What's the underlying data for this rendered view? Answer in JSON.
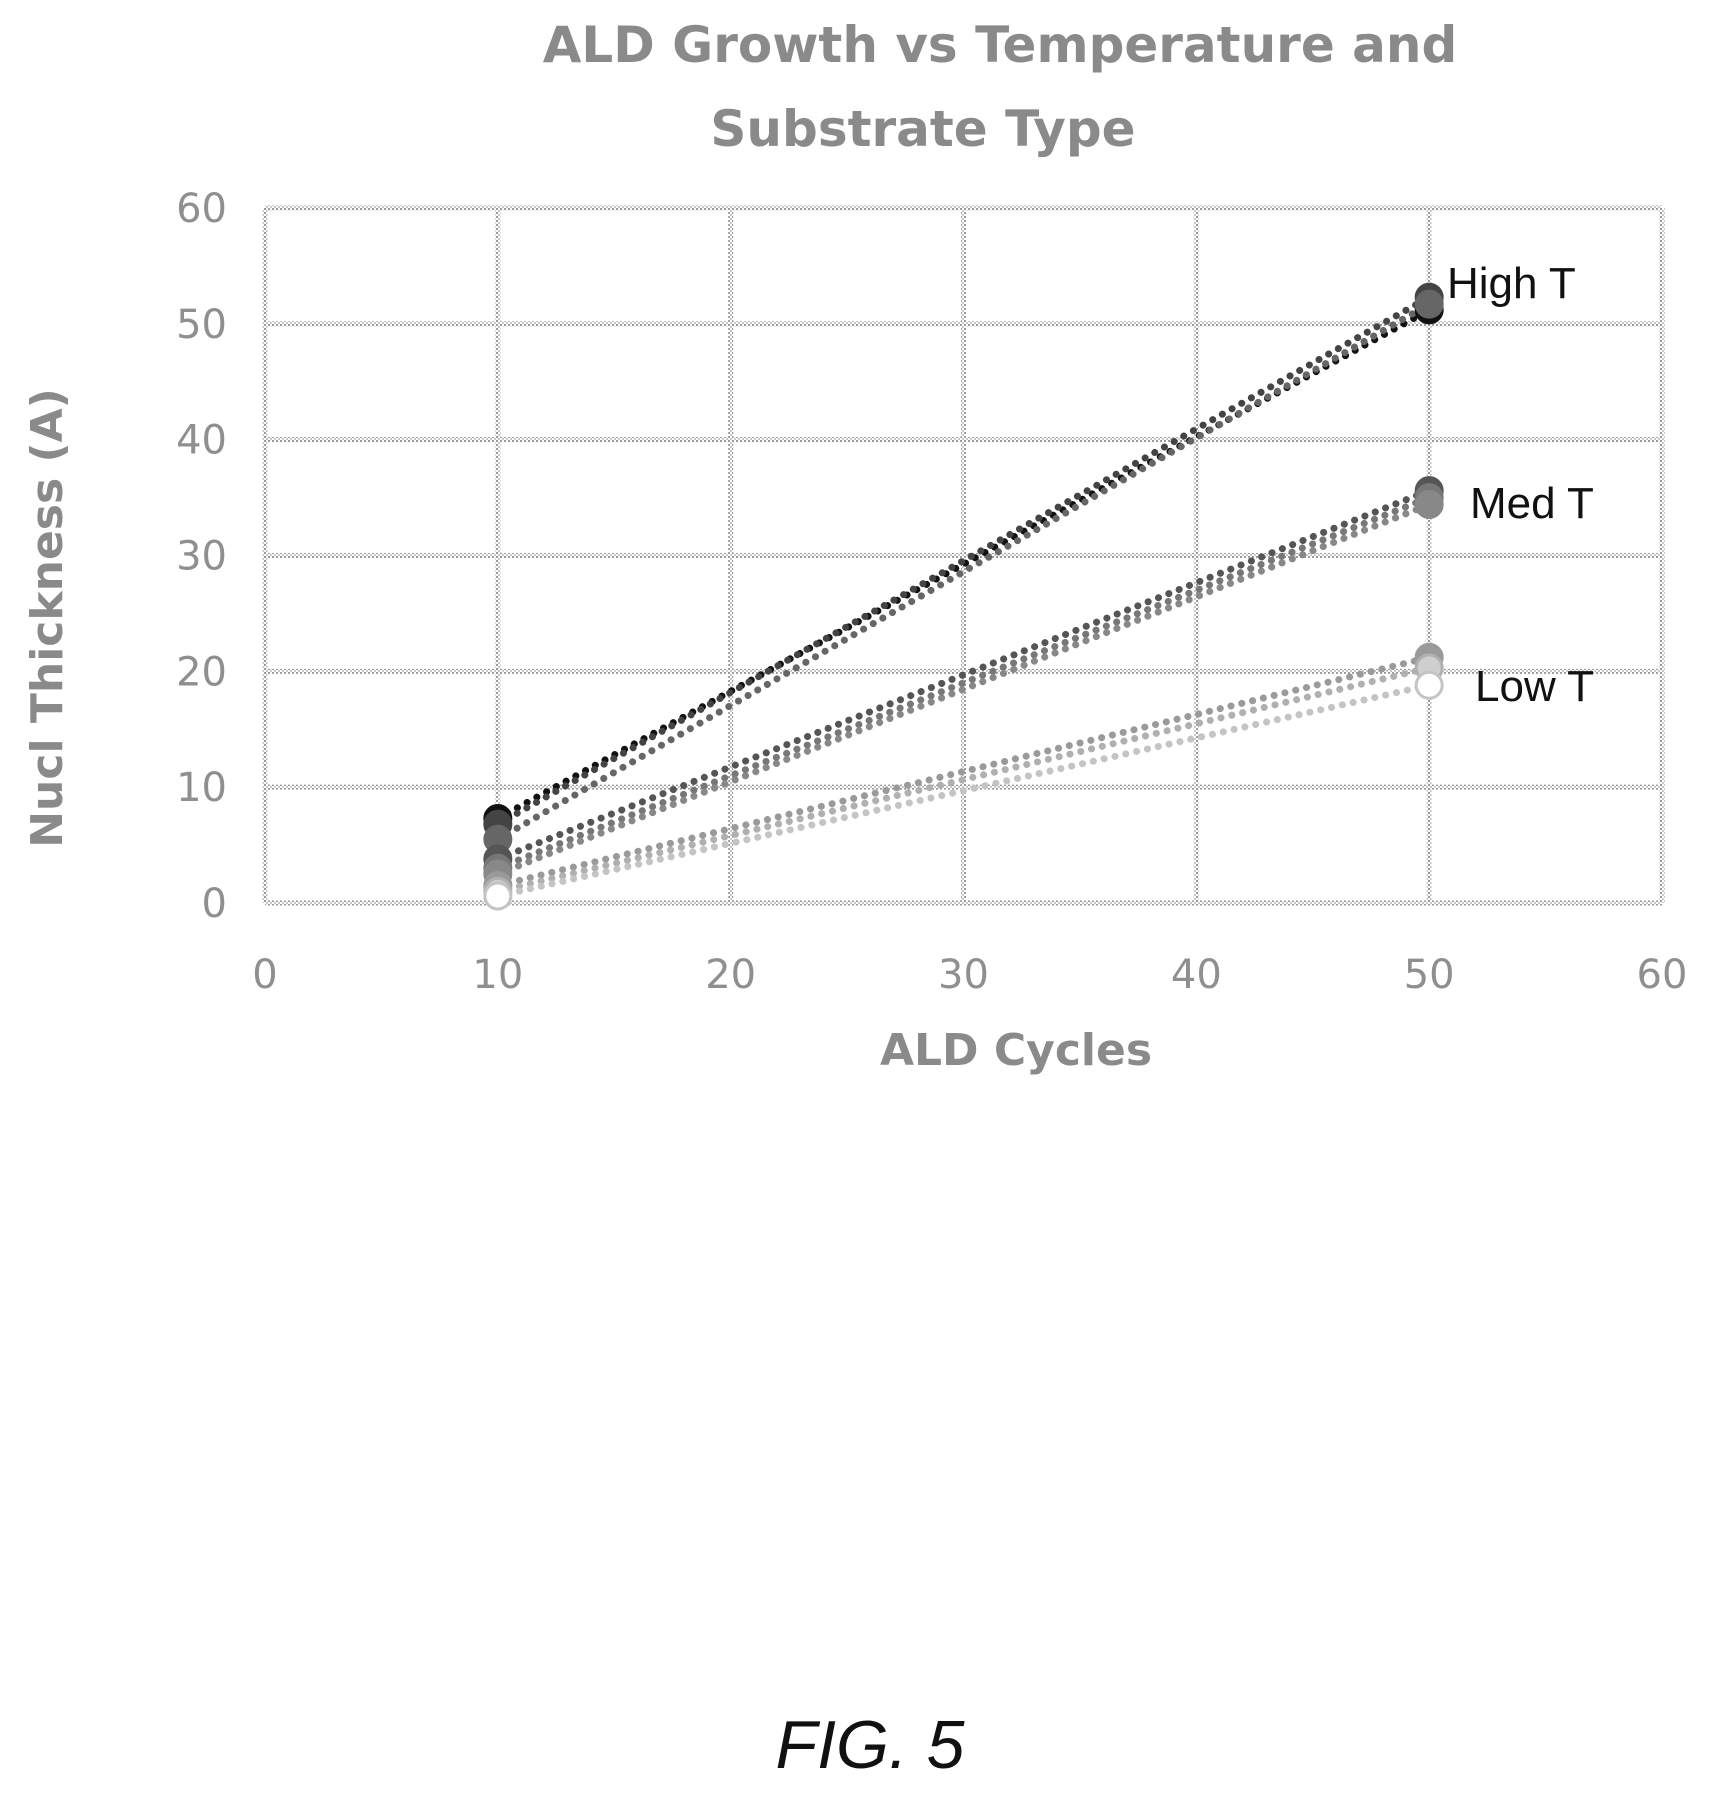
{
  "figure_label": "FIG. 5",
  "chart_data": {
    "type": "line",
    "title_lines": [
      "ALD Growth vs Temperature and",
      "Substrate Type"
    ],
    "xlabel": "ALD Cycles",
    "ylabel": "Nucl  Thickness (A)",
    "xlim": [
      0,
      60
    ],
    "ylim": [
      0,
      60
    ],
    "xticks": [
      0,
      10,
      20,
      30,
      40,
      50,
      60
    ],
    "yticks": [
      0,
      10,
      20,
      30,
      40,
      50,
      60
    ],
    "grid": true,
    "line_style": "dotted",
    "x": [
      10,
      50
    ],
    "groups": [
      {
        "label": "High T",
        "color": "#222222"
      },
      {
        "label": "Med T",
        "color": "#777777"
      },
      {
        "label": "Low T",
        "color": "#b5b5b5"
      }
    ],
    "series": [
      {
        "group": 0,
        "color": "#111111",
        "marker_fill": "#111111",
        "values": [
          7.3,
          51.2
        ]
      },
      {
        "group": 0,
        "color": "#444444",
        "marker_fill": "#444444",
        "values": [
          6.8,
          52.3
        ]
      },
      {
        "group": 0,
        "color": "#666666",
        "marker_fill": "#666666",
        "values": [
          5.5,
          51.7
        ]
      },
      {
        "group": 1,
        "color": "#555555",
        "marker_fill": "#555555",
        "values": [
          3.8,
          35.6
        ]
      },
      {
        "group": 1,
        "color": "#777777",
        "marker_fill": "#777777",
        "values": [
          3.0,
          35.0
        ]
      },
      {
        "group": 1,
        "color": "#888888",
        "marker_fill": "#888888",
        "values": [
          2.5,
          34.4
        ]
      },
      {
        "group": 2,
        "color": "#9a9a9a",
        "marker_fill": "#9a9a9a",
        "values": [
          1.5,
          21.2
        ]
      },
      {
        "group": 2,
        "color": "#b0b0b0",
        "marker_fill": "#cfcfcf",
        "values": [
          1.0,
          20.3
        ]
      },
      {
        "group": 2,
        "color": "#c4c4c4",
        "marker_fill": "#ffffff",
        "values": [
          0.6,
          18.8
        ]
      }
    ]
  }
}
